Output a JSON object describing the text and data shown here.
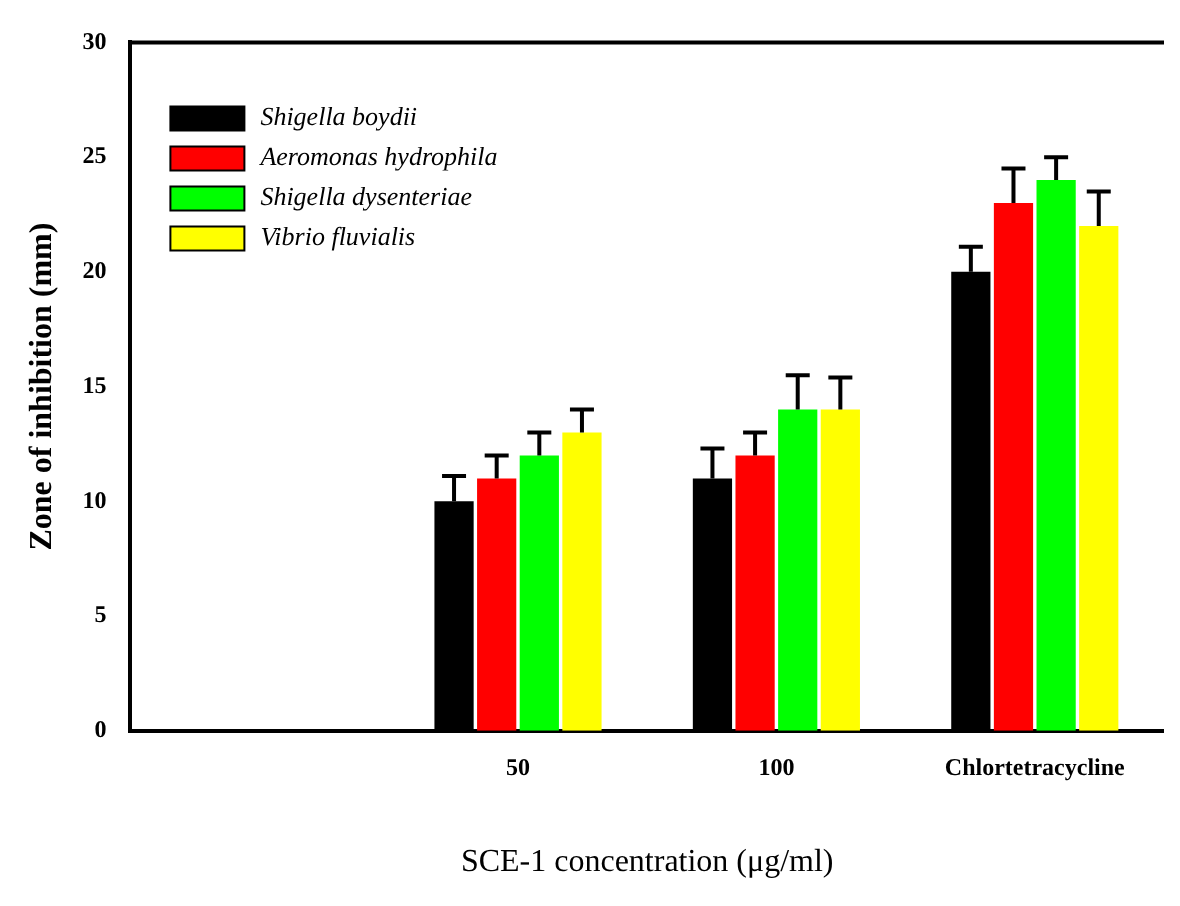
{
  "chart_data": {
    "type": "bar",
    "xlabel": "SCE-1 concentration (μg/ml)",
    "ylabel": "Zone of inhibition (mm)",
    "categories": [
      null,
      "50",
      "100",
      "Chlortetracycline"
    ],
    "series": [
      {
        "name": "Shigella boydii",
        "color": "#000000",
        "values": [
          null,
          10,
          11,
          20
        ],
        "errors": [
          null,
          1.1,
          1.3,
          1.1
        ]
      },
      {
        "name": "Aeromonas hydrophila",
        "color": "#ff0000",
        "values": [
          null,
          11,
          12,
          23
        ],
        "errors": [
          null,
          1,
          1,
          1.5
        ]
      },
      {
        "name": "Shigella dysenteriae",
        "color": "#00ff00",
        "values": [
          null,
          12,
          14,
          24
        ],
        "errors": [
          null,
          1,
          1.5,
          1
        ]
      },
      {
        "name": "Vibrio fluvialis",
        "color": "#ffff00",
        "values": [
          null,
          13,
          14,
          22
        ],
        "errors": [
          null,
          1,
          1.4,
          1.5
        ]
      }
    ],
    "ylim": [
      0,
      30
    ],
    "yticks": [
      0,
      5,
      10,
      15,
      20,
      25,
      30
    ],
    "grid": false,
    "legend": "top left"
  }
}
